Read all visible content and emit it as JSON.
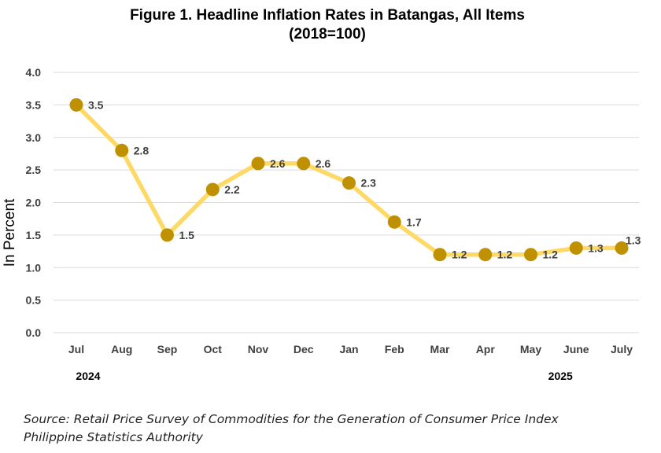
{
  "title_line1": "Figure 1. Headline Inflation Rates in Batangas, All Items",
  "title_line2": "(2018=100)",
  "source_line1": "Source: Retail Price Survey of Commodities for the Generation of Consumer Price Index",
  "source_line2": "Philippine Statistics Authority",
  "colors": {
    "line": "#FFD966",
    "marker": "#BF9000",
    "grid": "#D9D9D9",
    "text": "#404040"
  },
  "chart_data": {
    "type": "line",
    "categories": [
      "Jul",
      "Aug",
      "Sep",
      "Oct",
      "Nov",
      "Dec",
      "Jan",
      "Feb",
      "Mar",
      "Apr",
      "May",
      "June",
      "July"
    ],
    "year_labels": [
      {
        "label": "2024",
        "category": "Jul"
      },
      {
        "label": "2025",
        "category": "June"
      }
    ],
    "series": [
      {
        "values": [
          3.5,
          2.8,
          1.5,
          2.2,
          2.6,
          2.6,
          2.3,
          1.7,
          1.2,
          1.2,
          1.2,
          1.3,
          1.3
        ]
      }
    ],
    "data_labels": [
      "3.5",
      "2.8",
      "1.5",
      "2.2",
      "2.6",
      "2.6",
      "2.3",
      "1.7",
      "1.2",
      "1.2",
      "1.2",
      "1.3",
      "1.3"
    ],
    "ylabel": "In Percent",
    "xlabel": "",
    "ylim": [
      0,
      4
    ],
    "yticks": [
      "0.0",
      "0.5",
      "1.0",
      "1.5",
      "2.0",
      "2.5",
      "3.0",
      "3.5",
      "4.0"
    ],
    "grid": true,
    "legend": "none"
  }
}
